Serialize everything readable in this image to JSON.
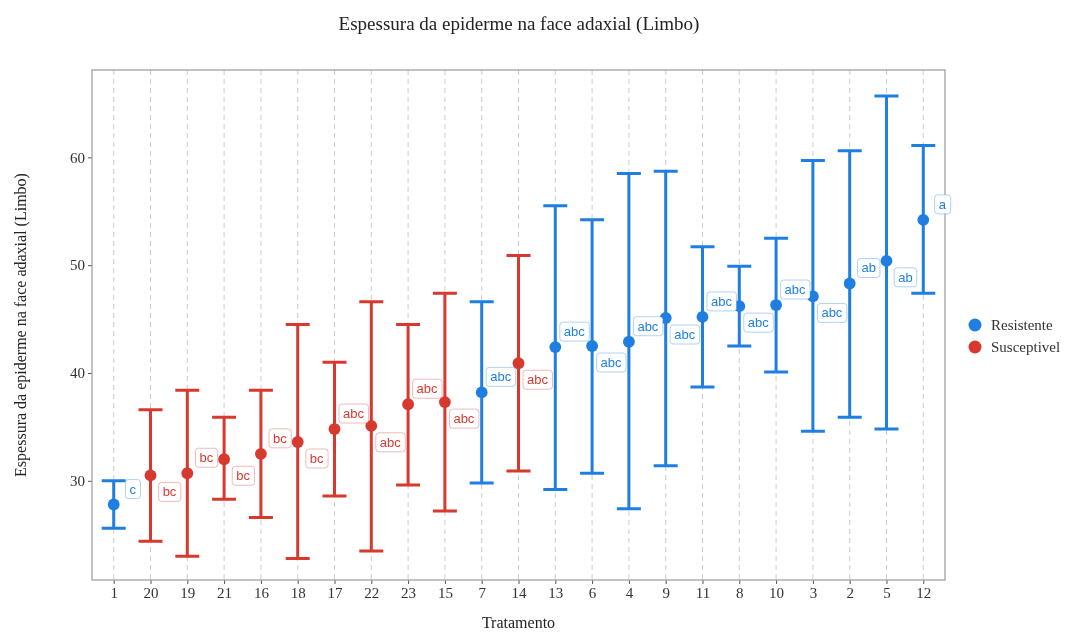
{
  "chart_data": {
    "type": "scatter",
    "title": "Espessura da epiderme na face adaxial (Limbo)",
    "xlabel": "Tratamento",
    "ylabel": "Espessura da epiderme na face adaxial (Limbo)",
    "categories": [
      "1",
      "20",
      "19",
      "21",
      "16",
      "18",
      "17",
      "22",
      "23",
      "15",
      "7",
      "14",
      "13",
      "6",
      "4",
      "9",
      "11",
      "8",
      "10",
      "3",
      "2",
      "5",
      "12"
    ],
    "ylim": [
      20.8,
      68.1
    ],
    "yticks": [
      30,
      40,
      50,
      60
    ],
    "grid": "x",
    "legend": "right",
    "marker": "circle",
    "series": [
      {
        "name": "Resistente",
        "color": "#1f7fe0",
        "values": [
          27.8,
          null,
          null,
          null,
          null,
          null,
          null,
          null,
          null,
          null,
          38.2,
          null,
          42.4,
          42.5,
          42.9,
          45.1,
          45.2,
          46.2,
          46.3,
          47.1,
          48.3,
          50.4,
          54.2
        ],
        "errors": [
          [
            25.6,
            30.0
          ],
          null,
          null,
          null,
          null,
          null,
          null,
          null,
          null,
          null,
          [
            29.8,
            46.6
          ],
          null,
          [
            29.2,
            55.5
          ],
          [
            30.7,
            54.2
          ],
          [
            27.4,
            58.5
          ],
          [
            31.4,
            58.7
          ],
          [
            38.7,
            51.7
          ],
          [
            42.5,
            49.9
          ],
          [
            40.1,
            52.5
          ],
          [
            34.6,
            59.7
          ],
          [
            35.9,
            60.6
          ],
          [
            34.8,
            65.7
          ],
          [
            47.4,
            61.1
          ]
        ],
        "value_labels": [
          "c",
          null,
          null,
          null,
          null,
          null,
          null,
          null,
          null,
          null,
          "abc",
          null,
          "abc",
          "abc",
          "abc",
          "abc",
          "abc",
          "abc",
          "abc",
          "abc",
          "ab",
          "ab",
          "a"
        ]
      },
      {
        "name": "Susceptivel",
        "color": "#d7392f",
        "values": [
          null,
          30.5,
          30.7,
          32.0,
          32.5,
          33.6,
          34.8,
          35.1,
          37.1,
          37.3,
          null,
          40.9,
          null,
          null,
          null,
          null,
          null,
          null,
          null,
          null,
          null,
          null,
          null
        ],
        "errors": [
          null,
          [
            24.4,
            36.6
          ],
          [
            23.0,
            38.4
          ],
          [
            28.3,
            35.9
          ],
          [
            26.6,
            38.4
          ],
          [
            22.8,
            44.5
          ],
          [
            28.6,
            41.0
          ],
          [
            23.5,
            46.6
          ],
          [
            29.6,
            44.5
          ],
          [
            27.2,
            47.4
          ],
          null,
          [
            30.9,
            50.9
          ],
          null,
          null,
          null,
          null,
          null,
          null,
          null,
          null,
          null,
          null,
          null
        ],
        "value_labels": [
          null,
          "bc",
          "bc",
          "bc",
          "bc",
          "bc",
          "abc",
          "abc",
          "abc",
          "abc",
          null,
          "abc",
          null,
          null,
          null,
          null,
          null,
          null,
          null,
          null,
          null,
          null,
          null
        ]
      }
    ]
  }
}
